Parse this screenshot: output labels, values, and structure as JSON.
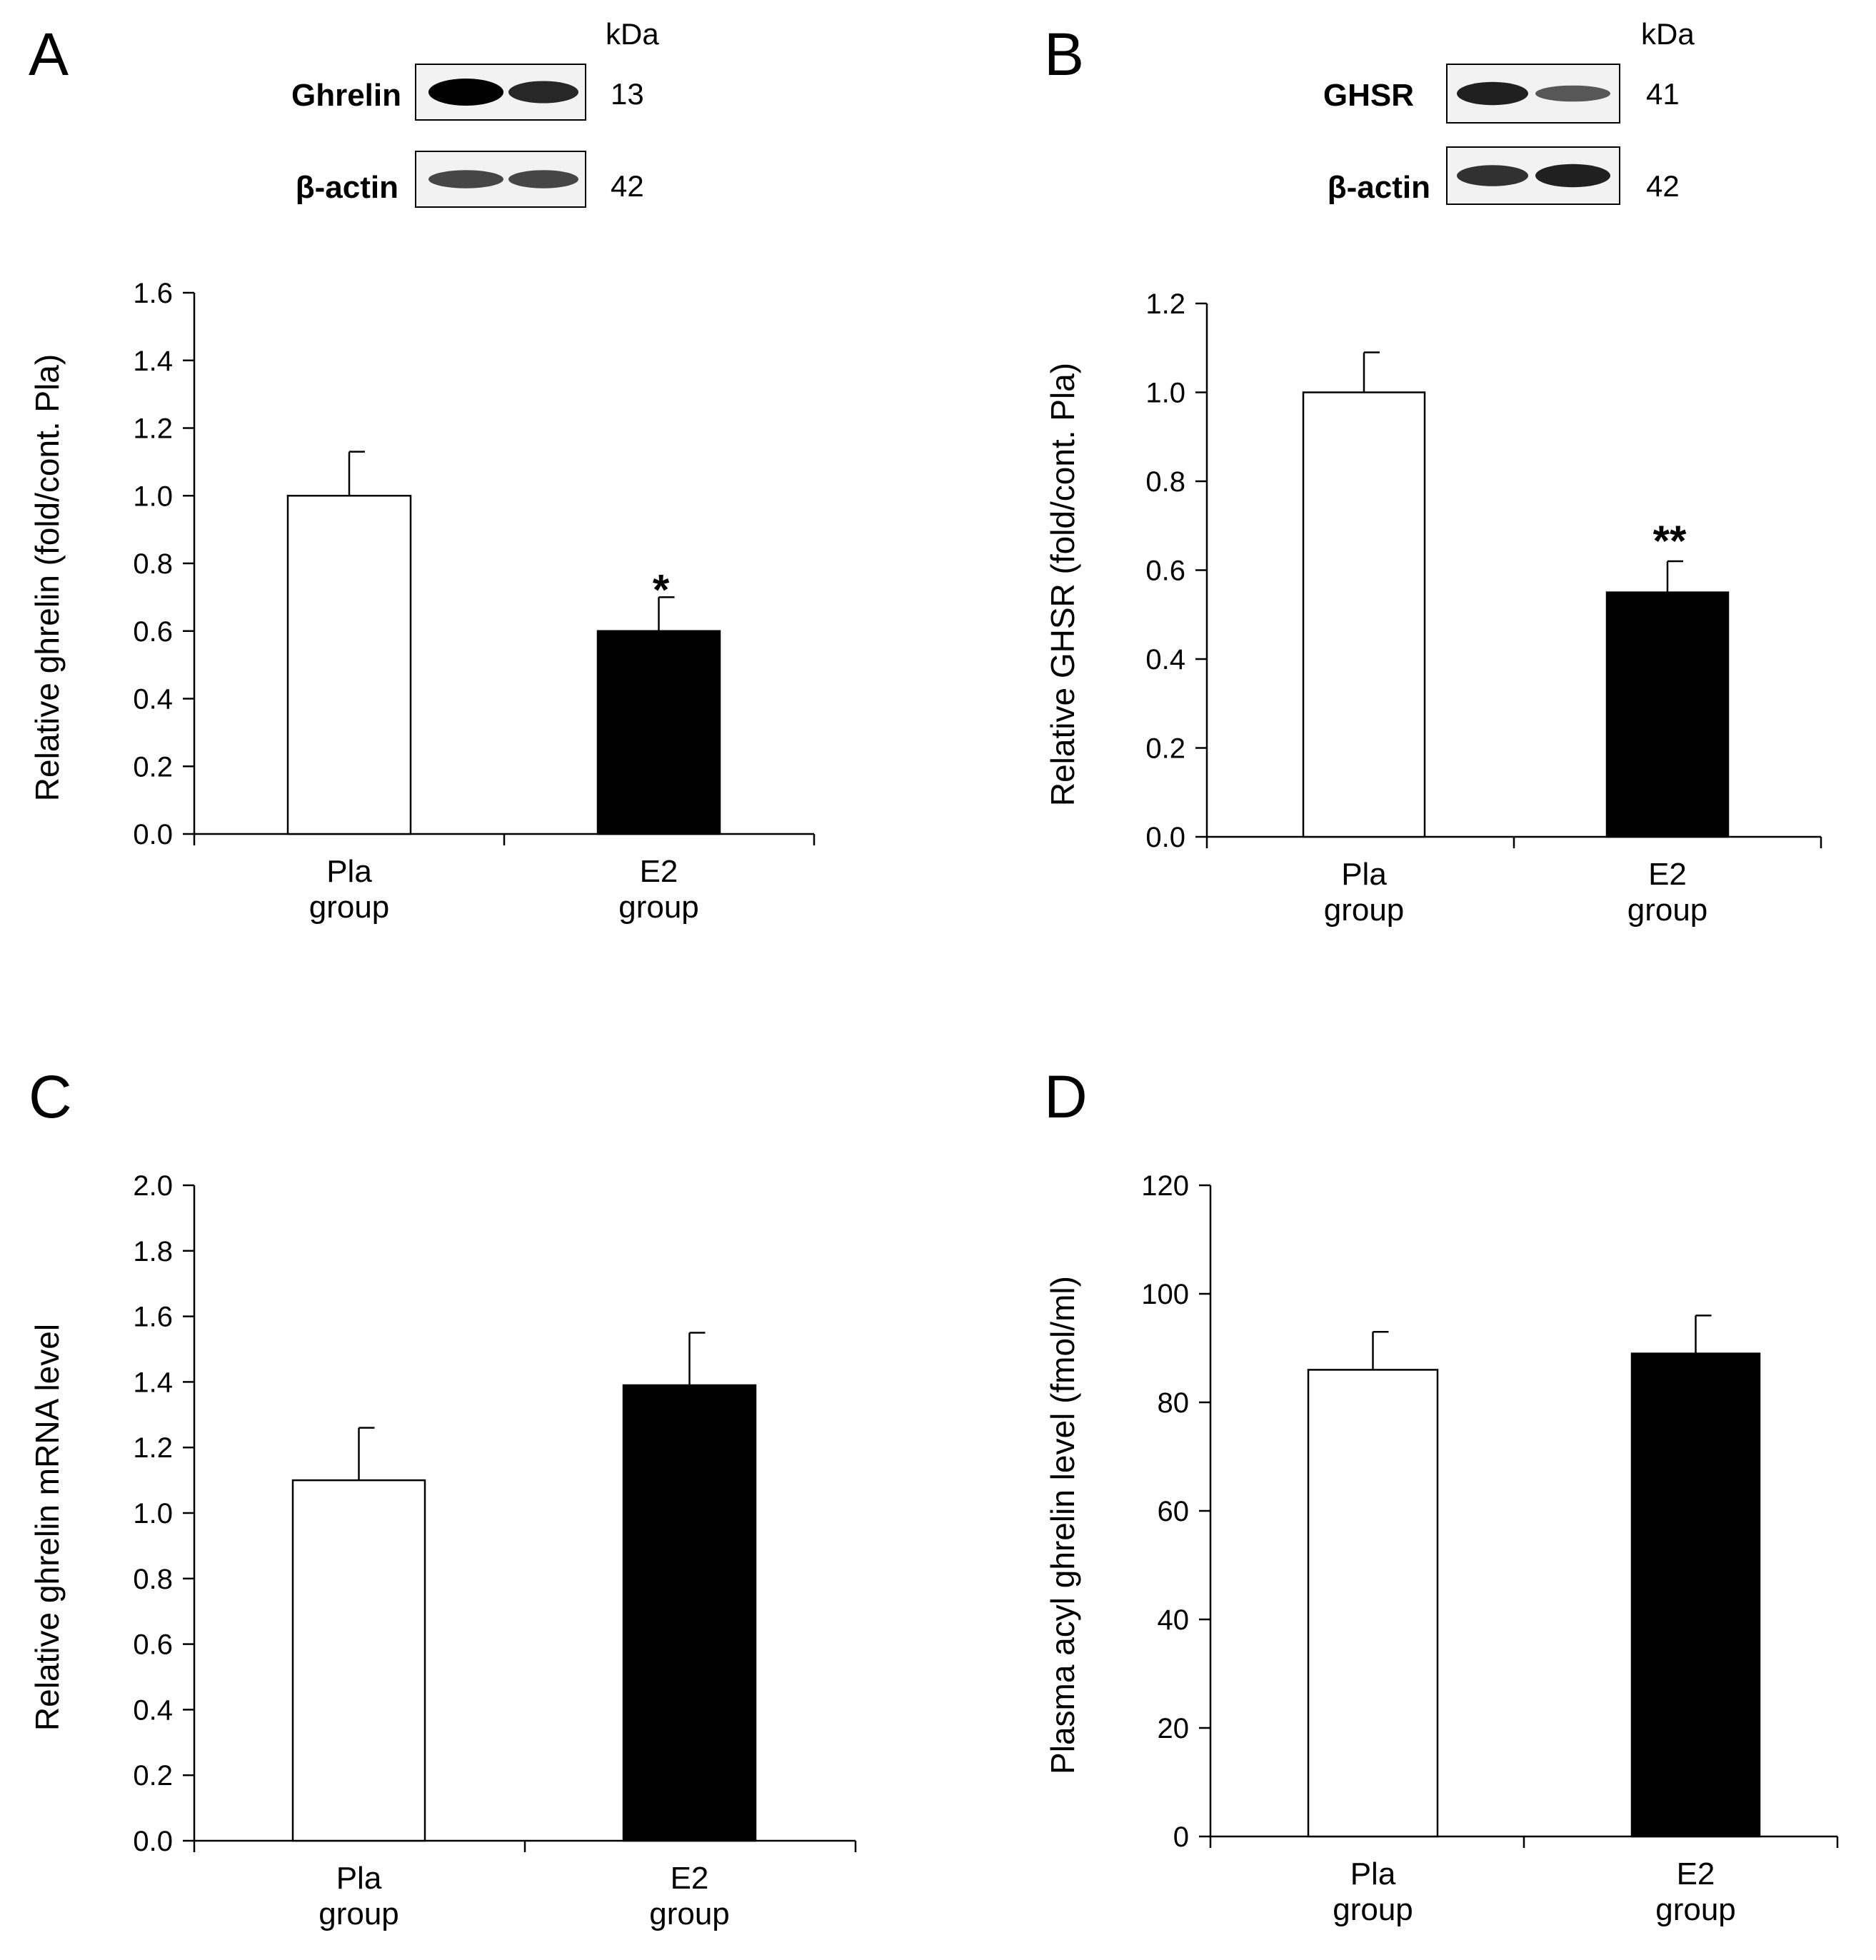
{
  "figure": {
    "bar_colors": {
      "pla": "#ffffff",
      "e2": "#000000"
    }
  },
  "chart_data": [
    {
      "type": "bar",
      "panel": "A",
      "categories": [
        "Pla\ngroup",
        "E2\ngroup"
      ],
      "values": [
        1.0,
        0.6
      ],
      "errors": [
        0.13,
        0.1
      ],
      "significance": [
        "",
        "*"
      ],
      "ylabel": "Relative ghrelin  (fold/cont. Pla)",
      "ylim": [
        0,
        1.6
      ],
      "yticks": [
        "0.0",
        "0.2",
        "0.4",
        "0.6",
        "0.8",
        "1.0",
        "1.2",
        "1.4",
        "1.6"
      ],
      "blot": {
        "unit": "kDa",
        "rows": [
          {
            "label": "Ghrelin",
            "kda": "13"
          },
          {
            "label": "β-actin",
            "kda": "42"
          }
        ]
      }
    },
    {
      "type": "bar",
      "panel": "B",
      "categories": [
        "Pla\ngroup",
        "E2\ngroup"
      ],
      "values": [
        1.0,
        0.55
      ],
      "errors": [
        0.09,
        0.07
      ],
      "significance": [
        "",
        "**"
      ],
      "ylabel": "Relative GHSR  (fold/cont. Pla)",
      "ylim": [
        0,
        1.2
      ],
      "yticks": [
        "0.0",
        "0.2",
        "0.4",
        "0.6",
        "0.8",
        "1.0",
        "1.2"
      ],
      "blot": {
        "unit": "kDa",
        "rows": [
          {
            "label": "GHSR",
            "kda": "41"
          },
          {
            "label": "β-actin",
            "kda": "42"
          }
        ]
      }
    },
    {
      "type": "bar",
      "panel": "C",
      "categories": [
        "Pla\ngroup",
        "E2\ngroup"
      ],
      "values": [
        1.1,
        1.39
      ],
      "errors": [
        0.16,
        0.16
      ],
      "significance": [
        "",
        ""
      ],
      "ylabel": "Relative ghrelin mRNA level",
      "ylim": [
        0,
        2.0
      ],
      "yticks": [
        "0.0",
        "0.2",
        "0.4",
        "0.6",
        "0.8",
        "1.0",
        "1.2",
        "1.4",
        "1.6",
        "1.8",
        "2.0"
      ]
    },
    {
      "type": "bar",
      "panel": "D",
      "categories": [
        "Pla\ngroup",
        "E2\ngroup"
      ],
      "values": [
        86,
        89
      ],
      "errors": [
        7,
        7
      ],
      "significance": [
        "",
        ""
      ],
      "ylabel": "Plasma acyl ghrelin level (fmol/ml)",
      "ylim": [
        0,
        120
      ],
      "yticks": [
        "0",
        "20",
        "40",
        "60",
        "80",
        "100",
        "120"
      ]
    }
  ]
}
